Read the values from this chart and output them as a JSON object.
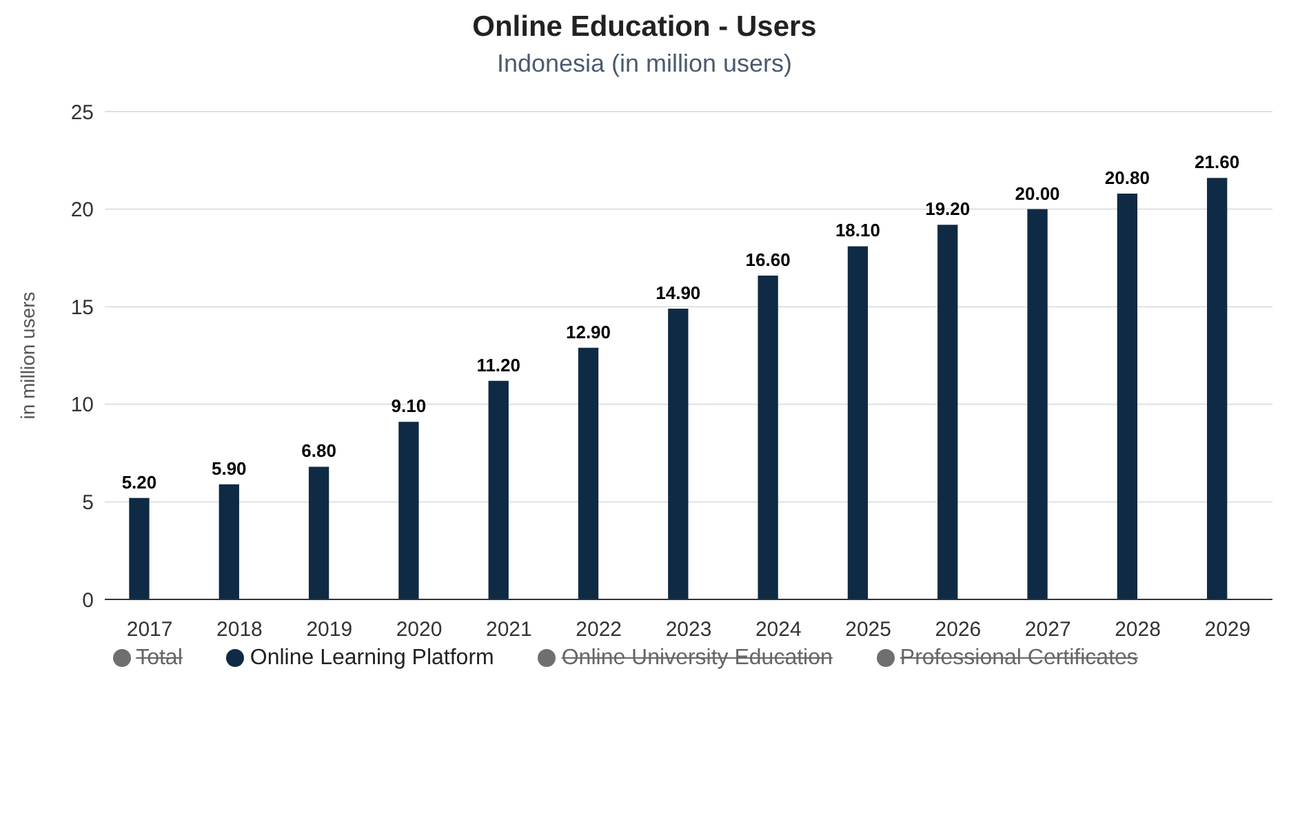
{
  "chart_data": {
    "type": "bar",
    "title": "Online Education - Users",
    "subtitle": "Indonesia (in million users)",
    "ylabel": "in million users",
    "categories": [
      "2017",
      "2018",
      "2019",
      "2020",
      "2021",
      "2022",
      "2023",
      "2024",
      "2025",
      "2026",
      "2027",
      "2028",
      "2029"
    ],
    "series": [
      {
        "name": "Total",
        "color": "#6f6f6f",
        "values": [
          null,
          null,
          null,
          null,
          null,
          null,
          null,
          null,
          null,
          null,
          null,
          null,
          null
        ]
      },
      {
        "name": "Online Learning Platform",
        "color": "#0f2a44",
        "values": [
          5.2,
          5.9,
          6.8,
          9.1,
          11.2,
          12.9,
          14.9,
          16.6,
          18.1,
          19.2,
          20.0,
          20.8,
          21.6
        ],
        "value_labels": [
          "5.20",
          "5.90",
          "6.80",
          "9.10",
          "11.20",
          "12.90",
          "14.90",
          "16.60",
          "18.10",
          "19.20",
          "20.00",
          "20.80",
          "21.60"
        ]
      },
      {
        "name": "Online University Education",
        "color": "#6f6f6f",
        "values": [
          null,
          null,
          null,
          null,
          null,
          null,
          null,
          null,
          null,
          null,
          null,
          null,
          null
        ]
      },
      {
        "name": "Professional Certificates",
        "color": "#6f6f6f",
        "values": [
          null,
          null,
          null,
          null,
          null,
          null,
          null,
          null,
          null,
          null,
          null,
          null,
          null
        ]
      }
    ],
    "ylim": [
      0,
      25
    ],
    "yticks": [
      0,
      5,
      10,
      15,
      20,
      25
    ],
    "grid": "y",
    "legend": "bottom"
  }
}
